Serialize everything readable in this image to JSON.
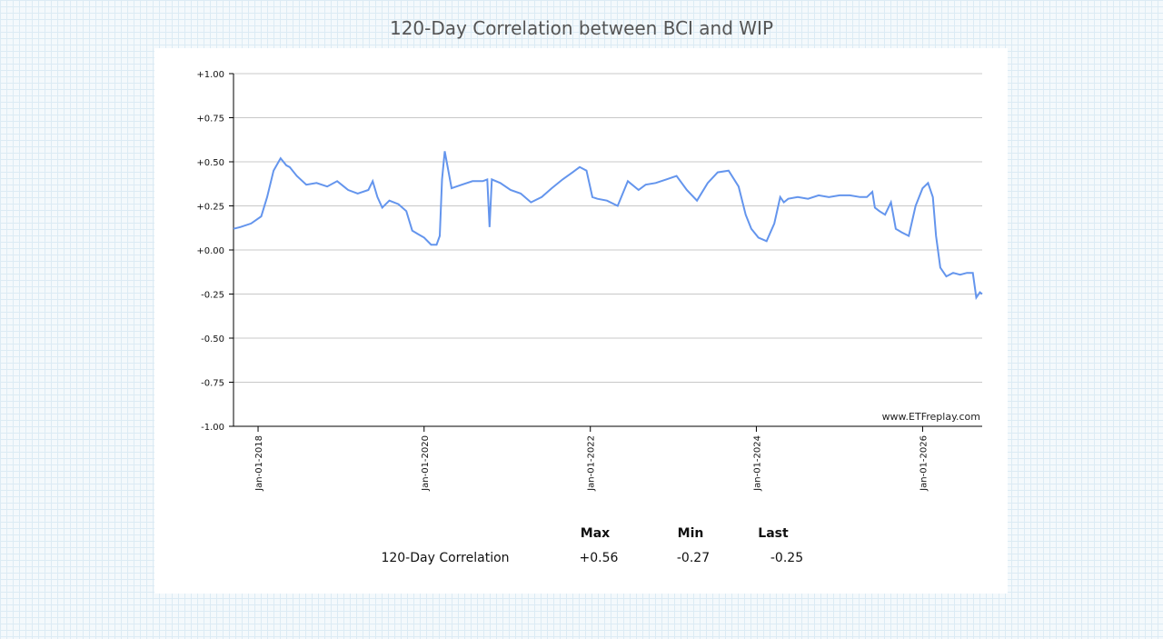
{
  "title": "120-Day Correlation between BCI and WIP",
  "watermark": "www.ETFreplay.com",
  "colors": {
    "line": "#6495ed",
    "grid": "#c8c8c8",
    "axis": "#000000"
  },
  "stats": {
    "headers": {
      "max": "Max",
      "min": "Min",
      "last": "Last"
    },
    "row_label": "120-Day Correlation",
    "max": "+0.56",
    "min": "-0.27",
    "last": "-0.25"
  },
  "chart_data": {
    "type": "line",
    "xlabel": "",
    "ylabel": "",
    "ylim": [
      -1.0,
      1.0
    ],
    "xlim": [
      "2017-09-15",
      "2026-09-20"
    ],
    "y_ticks": [
      "+1.00",
      "+0.75",
      "+0.50",
      "+0.25",
      "+0.00",
      "-0.25",
      "-0.50",
      "-0.75",
      "-1.00"
    ],
    "y_tick_values": [
      1.0,
      0.75,
      0.5,
      0.25,
      0.0,
      -0.25,
      -0.5,
      -0.75,
      -1.0
    ],
    "x_ticks": [
      "Jan-01-2018",
      "Jan-01-2020",
      "Jan-01-2022",
      "Jan-01-2024",
      "Jan-01-2026"
    ],
    "x_tick_dates": [
      "2018-01-01",
      "2020-01-01",
      "2022-01-01",
      "2024-01-01",
      "2026-01-01"
    ],
    "grid": true,
    "series": [
      {
        "x": [
          "2017-09-15",
          "2017-10-15",
          "2017-12-01",
          "2018-01-15",
          "2018-02-10",
          "2018-03-10",
          "2018-04-10",
          "2018-05-05",
          "2018-05-20",
          "2018-06-20",
          "2018-08-01",
          "2018-09-15",
          "2018-11-01",
          "2018-12-15",
          "2019-02-01",
          "2019-03-15",
          "2019-05-01",
          "2019-05-20",
          "2019-06-10",
          "2019-07-01",
          "2019-08-01",
          "2019-09-10",
          "2019-10-15",
          "2019-11-10",
          "2019-12-05",
          "2020-01-01",
          "2020-02-01",
          "2020-02-25",
          "2020-03-10",
          "2020-03-20",
          "2020-04-01",
          "2020-05-01",
          "2020-06-15",
          "2020-08-01",
          "2020-09-15",
          "2020-10-05",
          "2020-10-15",
          "2020-10-25",
          "2020-12-01",
          "2021-01-15",
          "2021-03-01",
          "2021-04-15",
          "2021-06-01",
          "2021-07-15",
          "2021-09-01",
          "2021-10-15",
          "2021-11-15",
          "2021-12-15",
          "2022-01-10",
          "2022-02-01",
          "2022-03-15",
          "2022-05-01",
          "2022-06-15",
          "2022-08-01",
          "2022-09-01",
          "2022-10-15",
          "2022-12-01",
          "2023-01-15",
          "2023-03-01",
          "2023-04-15",
          "2023-06-01",
          "2023-07-15",
          "2023-09-01",
          "2023-10-15",
          "2023-11-15",
          "2023-12-10",
          "2024-01-10",
          "2024-02-15",
          "2024-03-20",
          "2024-04-15",
          "2024-05-01",
          "2024-05-20",
          "2024-07-01",
          "2024-08-15",
          "2024-10-01",
          "2024-11-15",
          "2025-01-01",
          "2025-02-15",
          "2025-04-01",
          "2025-05-01",
          "2025-05-25",
          "2025-06-05",
          "2025-06-25",
          "2025-07-20",
          "2025-08-15",
          "2025-09-05",
          "2025-10-01",
          "2025-11-01",
          "2025-12-01",
          "2026-01-01",
          "2026-01-25",
          "2026-02-15",
          "2026-03-01",
          "2026-03-20",
          "2026-04-15",
          "2026-05-15",
          "2026-06-15",
          "2026-07-15",
          "2026-08-10",
          "2026-08-25",
          "2026-09-10",
          "2026-09-20"
        ],
        "y": [
          0.12,
          0.13,
          0.15,
          0.19,
          0.3,
          0.45,
          0.52,
          0.48,
          0.47,
          0.42,
          0.37,
          0.38,
          0.36,
          0.39,
          0.34,
          0.32,
          0.34,
          0.39,
          0.3,
          0.24,
          0.28,
          0.26,
          0.22,
          0.11,
          0.09,
          0.07,
          0.03,
          0.03,
          0.08,
          0.4,
          0.56,
          0.35,
          0.37,
          0.39,
          0.39,
          0.4,
          0.13,
          0.4,
          0.38,
          0.34,
          0.32,
          0.27,
          0.3,
          0.35,
          0.4,
          0.44,
          0.47,
          0.45,
          0.3,
          0.29,
          0.28,
          0.25,
          0.39,
          0.34,
          0.37,
          0.38,
          0.4,
          0.42,
          0.34,
          0.28,
          0.38,
          0.44,
          0.45,
          0.36,
          0.2,
          0.12,
          0.07,
          0.05,
          0.15,
          0.3,
          0.27,
          0.29,
          0.3,
          0.29,
          0.31,
          0.3,
          0.31,
          0.31,
          0.3,
          0.3,
          0.33,
          0.24,
          0.22,
          0.2,
          0.27,
          0.12,
          0.1,
          0.08,
          0.25,
          0.35,
          0.38,
          0.3,
          0.08,
          -0.1,
          -0.15,
          -0.13,
          -0.14,
          -0.13,
          -0.13,
          -0.27,
          -0.24,
          -0.25
        ]
      }
    ]
  }
}
